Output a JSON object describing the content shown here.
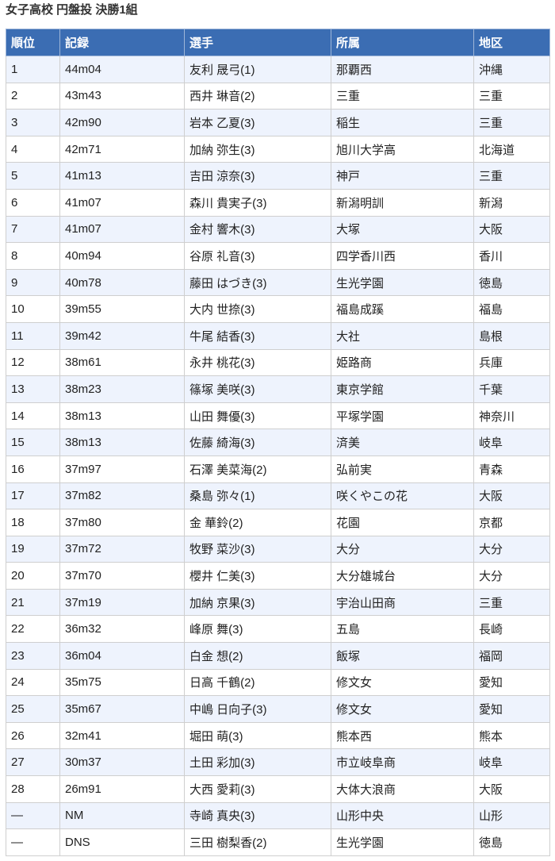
{
  "title": "女子高校 円盤投 決勝1組",
  "columns": [
    "順位",
    "記録",
    "選手",
    "所属",
    "地区"
  ],
  "rows": [
    [
      "1",
      "44m04",
      "友利 晟弓(1)",
      "那覇西",
      "沖縄"
    ],
    [
      "2",
      "43m43",
      "西井 琳音(2)",
      "三重",
      "三重"
    ],
    [
      "3",
      "42m90",
      "岩本 乙夏(3)",
      "稲生",
      "三重"
    ],
    [
      "4",
      "42m71",
      "加納 弥生(3)",
      "旭川大学高",
      "北海道"
    ],
    [
      "5",
      "41m13",
      "吉田 涼奈(3)",
      "神戸",
      "三重"
    ],
    [
      "6",
      "41m07",
      "森川 貴実子(3)",
      "新潟明訓",
      "新潟"
    ],
    [
      "7",
      "41m07",
      "金村 響木(3)",
      "大塚",
      "大阪"
    ],
    [
      "8",
      "40m94",
      "谷原 礼音(3)",
      "四学香川西",
      "香川"
    ],
    [
      "9",
      "40m78",
      "藤田 はづき(3)",
      "生光学園",
      "徳島"
    ],
    [
      "10",
      "39m55",
      "大内 世捺(3)",
      "福島成蹊",
      "福島"
    ],
    [
      "11",
      "39m42",
      "牛尾 結香(3)",
      "大社",
      "島根"
    ],
    [
      "12",
      "38m61",
      "永井 桃花(3)",
      "姫路商",
      "兵庫"
    ],
    [
      "13",
      "38m23",
      "篠塚 美咲(3)",
      "東京学館",
      "千葉"
    ],
    [
      "14",
      "38m13",
      "山田 舞優(3)",
      "平塚学園",
      "神奈川"
    ],
    [
      "15",
      "38m13",
      "佐藤 綺海(3)",
      "済美",
      "岐阜"
    ],
    [
      "16",
      "37m97",
      "石澤 美菜海(2)",
      "弘前実",
      "青森"
    ],
    [
      "17",
      "37m82",
      "桑島 弥々(1)",
      "咲くやこの花",
      "大阪"
    ],
    [
      "18",
      "37m80",
      "金 華鈴(2)",
      "花園",
      "京都"
    ],
    [
      "19",
      "37m72",
      "牧野 菜沙(3)",
      "大分",
      "大分"
    ],
    [
      "20",
      "37m70",
      "櫻井 仁美(3)",
      "大分雄城台",
      "大分"
    ],
    [
      "21",
      "37m19",
      "加納 京果(3)",
      "宇治山田商",
      "三重"
    ],
    [
      "22",
      "36m32",
      "峰原 舞(3)",
      "五島",
      "長崎"
    ],
    [
      "23",
      "36m04",
      "白金 想(2)",
      "飯塚",
      "福岡"
    ],
    [
      "24",
      "35m75",
      "日高 千鶴(2)",
      "修文女",
      "愛知"
    ],
    [
      "25",
      "35m67",
      "中嶋 日向子(3)",
      "修文女",
      "愛知"
    ],
    [
      "26",
      "32m41",
      "堀田 萌(3)",
      "熊本西",
      "熊本"
    ],
    [
      "27",
      "30m37",
      "土田 彩加(3)",
      "市立岐阜商",
      "岐阜"
    ],
    [
      "28",
      "26m91",
      "大西 愛莉(3)",
      "大体大浪商",
      "大阪"
    ],
    [
      "—",
      "NM",
      "寺崎 真央(3)",
      "山形中央",
      "山形"
    ],
    [
      "—",
      "DNS",
      "三田 樹梨香(2)",
      "生光学園",
      "徳島"
    ]
  ],
  "colors": {
    "header_bg": "#3b6db3",
    "row_alt_bg": "#eef3fd"
  }
}
